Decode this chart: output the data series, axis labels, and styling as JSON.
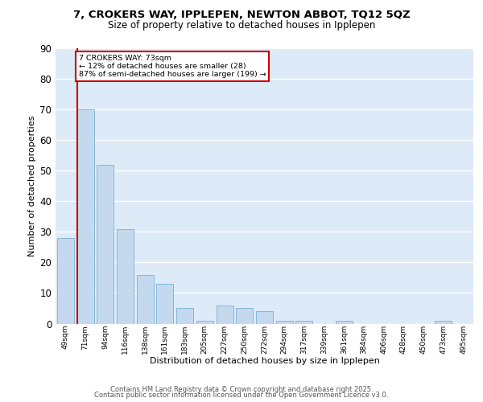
{
  "title": "7, CROKERS WAY, IPPLEPEN, NEWTON ABBOT, TQ12 5QZ",
  "subtitle": "Size of property relative to detached houses in Ipplepen",
  "xlabel": "Distribution of detached houses by size in Ipplepen",
  "ylabel": "Number of detached properties",
  "categories": [
    "49sqm",
    "71sqm",
    "94sqm",
    "116sqm",
    "138sqm",
    "161sqm",
    "183sqm",
    "205sqm",
    "227sqm",
    "250sqm",
    "272sqm",
    "294sqm",
    "317sqm",
    "339sqm",
    "361sqm",
    "384sqm",
    "406sqm",
    "428sqm",
    "450sqm",
    "473sqm",
    "495sqm"
  ],
  "values": [
    28,
    70,
    52,
    31,
    16,
    13,
    5,
    1,
    6,
    5,
    4,
    1,
    1,
    0,
    1,
    0,
    0,
    0,
    0,
    1,
    0
  ],
  "bar_color": "#c5d9ee",
  "bar_edge_color": "#7aafd4",
  "background_color": "#ddeaf7",
  "grid_color": "#ffffff",
  "red_line_index": 1,
  "annotation_line1": "7 CROKERS WAY: 73sqm",
  "annotation_line2": "← 12% of detached houses are smaller (28)",
  "annotation_line3": "87% of semi-detached houses are larger (199) →",
  "annotation_box_color": "#ffffff",
  "annotation_box_edge": "#cc0000",
  "footer_line1": "Contains HM Land Registry data © Crown copyright and database right 2025.",
  "footer_line2": "Contains public sector information licensed under the Open Government Licence v3.0.",
  "ylim": [
    0,
    90
  ],
  "yticks": [
    0,
    10,
    20,
    30,
    40,
    50,
    60,
    70,
    80,
    90
  ]
}
